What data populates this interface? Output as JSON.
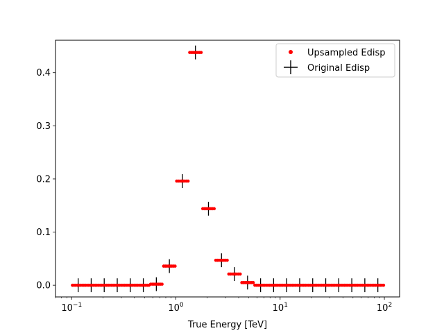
{
  "chart_data": {
    "type": "scatter",
    "title": "",
    "xlabel": "True Energy [TeV]",
    "ylabel": "",
    "xscale": "log",
    "xlim": [
      0.07,
      140
    ],
    "ylim": [
      -0.022,
      0.461
    ],
    "grid": false,
    "legend": "top-right",
    "x_ticks": [
      {
        "base": "10",
        "exp": "−1",
        "value": 0.1
      },
      {
        "base": "10",
        "exp": "0",
        "value": 1
      },
      {
        "base": "10",
        "exp": "1",
        "value": 10
      },
      {
        "base": "10",
        "exp": "2",
        "value": 100
      }
    ],
    "y_ticks": [
      {
        "label": "0.0",
        "value": 0.0
      },
      {
        "label": "0.1",
        "value": 0.1
      },
      {
        "label": "0.2",
        "value": 0.2
      },
      {
        "label": "0.3",
        "value": 0.3
      },
      {
        "label": "0.4",
        "value": 0.4
      }
    ],
    "original": {
      "name": "Original Edisp",
      "color": "#000000",
      "edges": [
        0.1,
        0.1334,
        0.1778,
        0.2371,
        0.3162,
        0.4217,
        0.5623,
        0.7499,
        1.0,
        1.3335,
        1.7783,
        2.3714,
        3.1623,
        4.217,
        5.6234,
        7.4989,
        10.0,
        13.3352,
        17.7828,
        23.7137,
        31.6228,
        42.1696,
        56.2341,
        74.9894,
        100.0
      ],
      "values": [
        0.0,
        0.0,
        0.0,
        0.0,
        0.0,
        0.0,
        0.002,
        0.036,
        0.196,
        0.438,
        0.144,
        0.047,
        0.021,
        0.005,
        0.0,
        0.0,
        0.0,
        0.0,
        0.0,
        0.0,
        0.0,
        0.0,
        0.0,
        0.0
      ],
      "yerr": 0.013
    },
    "upsampled": {
      "name": "Upsampled Edisp",
      "color": "#ff0000",
      "points_per_bin": 8
    }
  }
}
